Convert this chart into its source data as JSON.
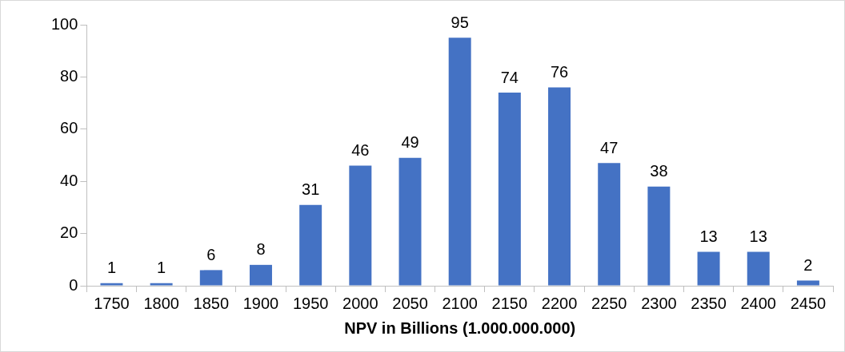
{
  "chart_data": {
    "type": "bar",
    "xlabel": "NPV in Billions (1.000.000.000)",
    "categories": [
      "1750",
      "1800",
      "1850",
      "1900",
      "1950",
      "2000",
      "2050",
      "2100",
      "2150",
      "2200",
      "2250",
      "2300",
      "2350",
      "2400",
      "2450"
    ],
    "values": [
      1,
      1,
      6,
      8,
      31,
      46,
      49,
      95,
      74,
      76,
      47,
      38,
      13,
      13,
      2
    ],
    "color": "#4472c4",
    "ylim": [
      0,
      100
    ],
    "yticks": [
      0,
      20,
      40,
      60,
      80,
      100
    ],
    "grid": false,
    "data_labels": true
  }
}
